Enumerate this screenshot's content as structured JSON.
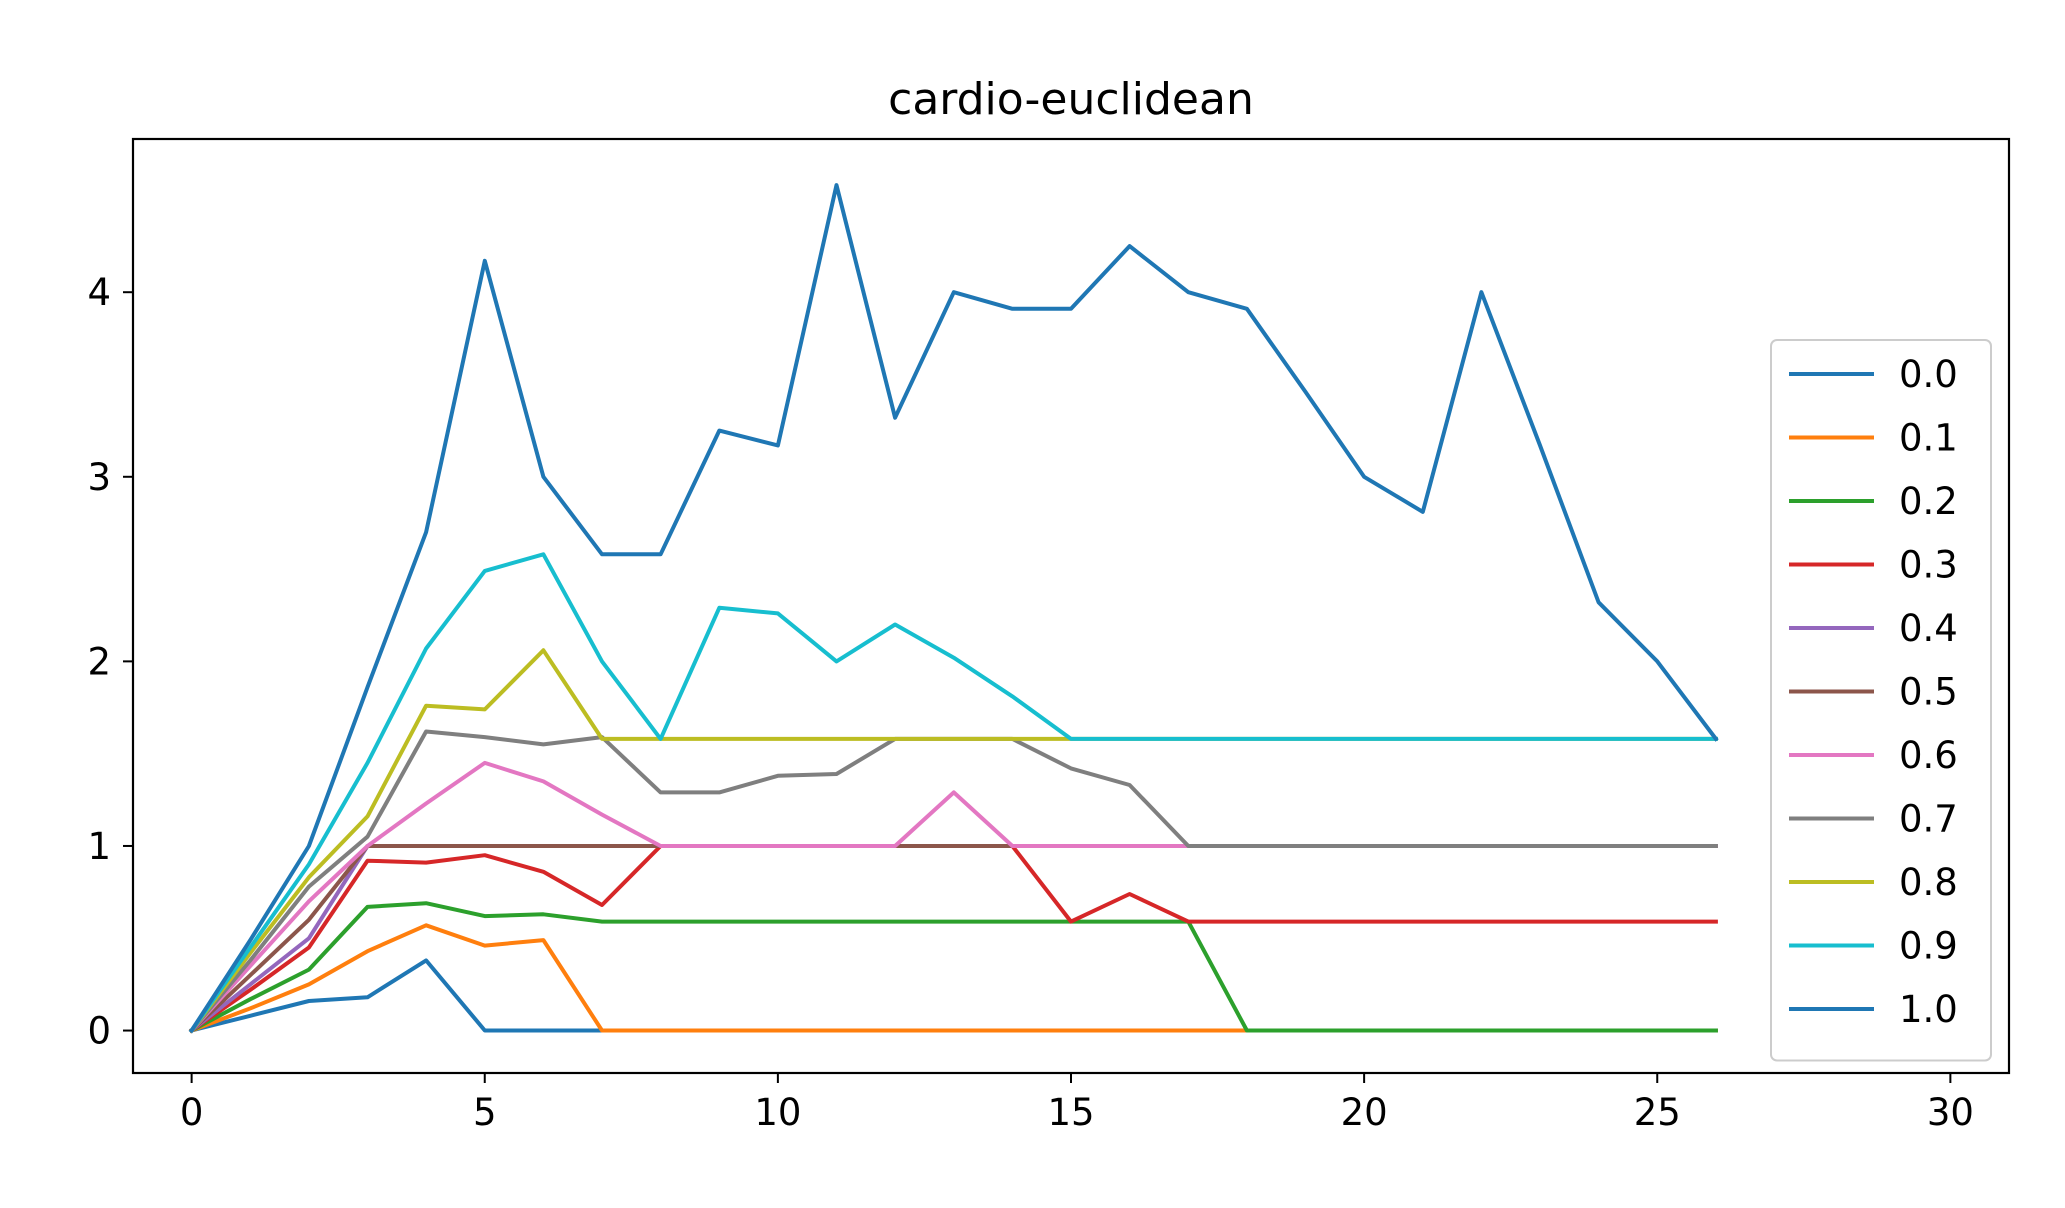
{
  "chart_data": {
    "type": "line",
    "title": "cardio-euclidean",
    "xlabel": "",
    "ylabel": "",
    "xlim": [
      -1,
      31
    ],
    "ylim": [
      -0.23,
      4.83
    ],
    "xticks": [
      0,
      5,
      10,
      15,
      20,
      25,
      30
    ],
    "yticks": [
      0,
      1,
      2,
      3,
      4
    ],
    "grid": false,
    "legend_position": "center-right",
    "x": [
      0,
      1,
      2,
      3,
      4,
      5,
      6,
      7,
      8,
      9,
      10,
      11,
      12,
      13,
      14,
      15,
      16,
      17,
      18,
      19,
      20,
      21,
      22,
      23,
      24,
      25,
      26
    ],
    "series": [
      {
        "name": "0.0",
        "color": "#1f77b4",
        "values": [
          0,
          0.08,
          0.16,
          0.18,
          0.38,
          0,
          0,
          0,
          0,
          0,
          0,
          0,
          0,
          0,
          0,
          0,
          0,
          0,
          0,
          0,
          0,
          0,
          0,
          0,
          0,
          0,
          0
        ]
      },
      {
        "name": "0.1",
        "color": "#ff7f0e",
        "values": [
          0,
          0.12,
          0.25,
          0.43,
          0.57,
          0.46,
          0.49,
          0,
          0,
          0,
          0,
          0,
          0,
          0,
          0,
          0,
          0,
          0,
          0,
          0,
          0,
          0,
          0,
          0,
          0,
          0,
          0
        ]
      },
      {
        "name": "0.2",
        "color": "#2ca02c",
        "values": [
          0,
          0.17,
          0.33,
          0.67,
          0.69,
          0.62,
          0.63,
          0.59,
          0.59,
          0.59,
          0.59,
          0.59,
          0.59,
          0.59,
          0.59,
          0.59,
          0.59,
          0.59,
          0,
          0,
          0,
          0,
          0,
          0,
          0,
          0,
          0
        ]
      },
      {
        "name": "0.3",
        "color": "#d62728",
        "values": [
          0,
          0.22,
          0.45,
          0.92,
          0.91,
          0.95,
          0.86,
          0.68,
          1.0,
          1.0,
          1.0,
          1.0,
          1.0,
          1.0,
          1.0,
          0.59,
          0.74,
          0.59,
          0.59,
          0.59,
          0.59,
          0.59,
          0.59,
          0.59,
          0.59,
          0.59,
          0.59
        ]
      },
      {
        "name": "0.4",
        "color": "#9467bd",
        "values": [
          0,
          0.25,
          0.5,
          1.0,
          1.0,
          1.0,
          1.0,
          1.0,
          1.0,
          1.0,
          1.0,
          1.0,
          1.0,
          1.0,
          1.0,
          1.0,
          1.0,
          1.0,
          1.0,
          1.0,
          1.0,
          1.0,
          1.0,
          1.0,
          1.0,
          1.0,
          1.0
        ]
      },
      {
        "name": "0.5",
        "color": "#8c564b",
        "values": [
          0,
          0.3,
          0.6,
          1.0,
          1.0,
          1.0,
          1.0,
          1.0,
          1.0,
          1.0,
          1.0,
          1.0,
          1.0,
          1.0,
          1.0,
          1.0,
          1.0,
          1.0,
          1.0,
          1.0,
          1.0,
          1.0,
          1.0,
          1.0,
          1.0,
          1.0,
          1.0
        ]
      },
      {
        "name": "0.6",
        "color": "#e377c2",
        "values": [
          0,
          0.35,
          0.7,
          1.0,
          1.23,
          1.45,
          1.35,
          1.17,
          1.0,
          1.0,
          1.0,
          1.0,
          1.0,
          1.29,
          1.0,
          1.0,
          1.0,
          1.0,
          1.0,
          1.0,
          1.0,
          1.0,
          1.0,
          1.0,
          1.0,
          1.0,
          1.0
        ]
      },
      {
        "name": "0.7",
        "color": "#7f7f7f",
        "values": [
          0,
          0.38,
          0.78,
          1.05,
          1.62,
          1.59,
          1.55,
          1.59,
          1.29,
          1.29,
          1.38,
          1.39,
          1.58,
          1.58,
          1.58,
          1.42,
          1.33,
          1.0,
          1.0,
          1.0,
          1.0,
          1.0,
          1.0,
          1.0,
          1.0,
          1.0,
          1.0
        ]
      },
      {
        "name": "0.8",
        "color": "#bcbd22",
        "values": [
          0,
          0.42,
          0.83,
          1.16,
          1.76,
          1.74,
          2.06,
          1.58,
          1.58,
          1.58,
          1.58,
          1.58,
          1.58,
          1.58,
          1.58,
          1.58,
          1.58,
          1.58,
          1.58,
          1.58,
          1.58,
          1.58,
          1.58,
          1.58,
          1.58,
          1.58,
          1.58
        ]
      },
      {
        "name": "0.9",
        "color": "#17becf",
        "values": [
          0,
          0.45,
          0.9,
          1.45,
          2.07,
          2.49,
          2.58,
          2.0,
          1.58,
          2.29,
          2.26,
          2.0,
          2.2,
          2.02,
          1.81,
          1.58,
          1.58,
          1.58,
          1.58,
          1.58,
          1.58,
          1.58,
          1.58,
          1.58,
          1.58,
          1.58,
          1.58
        ]
      },
      {
        "name": "1.0",
        "color": "#1f77b4",
        "values": [
          0,
          0.49,
          1.0,
          1.86,
          2.7,
          4.17,
          3.0,
          2.58,
          2.58,
          3.25,
          3.17,
          4.58,
          3.32,
          4.0,
          3.91,
          3.91,
          4.25,
          4.0,
          3.91,
          3.46,
          3.0,
          2.81,
          4.0,
          3.17,
          2.32,
          2.0,
          1.58
        ]
      }
    ]
  }
}
